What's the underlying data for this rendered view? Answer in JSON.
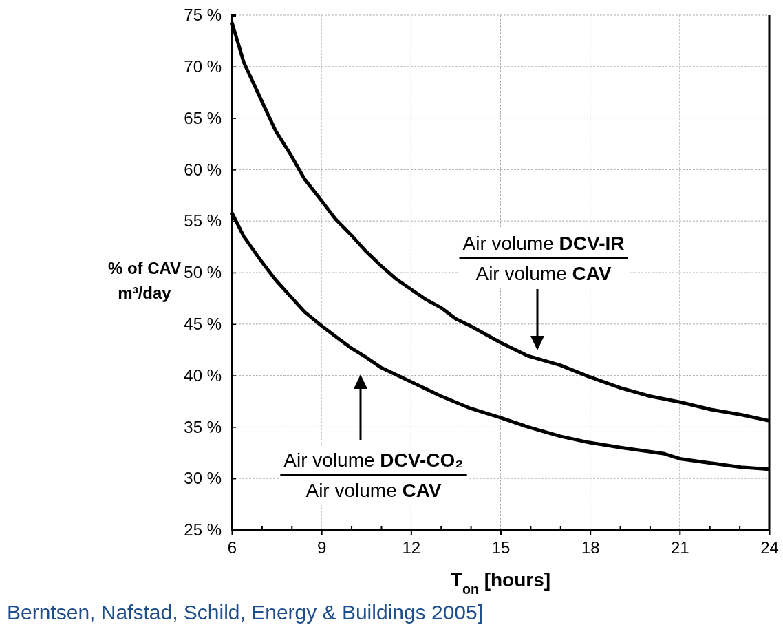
{
  "chart_data": {
    "type": "line",
    "xlabel": "T$_{on}$ [hours]",
    "ylabel": "% of CAV\nm³/day",
    "xlim": [
      6,
      24
    ],
    "xticks": [
      6,
      {
        "value": 7,
        "label": null
      },
      {
        "value": 8,
        "label": null
      },
      9,
      {
        "value": 10,
        "label": null
      },
      {
        "value": 11,
        "label": null
      },
      12,
      {
        "value": 13,
        "label": null
      },
      {
        "value": 14,
        "label": null
      },
      15,
      {
        "value": 16,
        "label": null
      },
      {
        "value": 17,
        "label": null
      },
      18,
      {
        "value": 19,
        "label": null
      },
      {
        "value": 20,
        "label": null
      },
      21,
      {
        "value": 22,
        "label": null
      },
      {
        "value": 23,
        "label": null
      },
      24
    ],
    "ylim": [
      25,
      75
    ],
    "yticks": [
      {
        "value": 25,
        "label": "25 %"
      },
      {
        "value": 30,
        "label": "30 %"
      },
      {
        "value": 35,
        "label": "35 %"
      },
      {
        "value": 40,
        "label": "40 %"
      },
      {
        "value": 45,
        "label": "45 %"
      },
      {
        "value": 50,
        "label": "50 %"
      },
      {
        "value": 55,
        "label": "55 %"
      },
      {
        "value": 60,
        "label": "60 %"
      },
      {
        "value": 65,
        "label": "65 %"
      },
      {
        "value": 70,
        "label": "70 %"
      },
      {
        "value": 75,
        "label": "75 %"
      }
    ],
    "grid": true,
    "marker": "none",
    "line_style": "solid",
    "series": [
      {
        "color": "#000000",
        "x": [
          6,
          6.4,
          6.96,
          7.46,
          7.96,
          8.43,
          8.97,
          9.47,
          9.98,
          10.48,
          10.98,
          11.49,
          11.99,
          12.49,
          13,
          13.5,
          14,
          15,
          15.92,
          17,
          17.95,
          19.02,
          19.99,
          21.04,
          22.04,
          23.05,
          24
        ],
        "values": [
          74.3,
          70.4,
          66.9,
          63.8,
          61.5,
          59.1,
          57.1,
          55.2,
          53.7,
          52.1,
          50.7,
          49.4,
          48.4,
          47.4,
          46.6,
          45.5,
          44.8,
          43.2,
          41.9,
          41.0,
          39.9,
          38.8,
          38.0,
          37.4,
          36.7,
          36.2,
          35.6
        ]
      },
      {
        "color": "#000000",
        "x": [
          6,
          6.4,
          6.96,
          7.46,
          7.96,
          8.43,
          8.97,
          9.47,
          9.98,
          10.48,
          10.98,
          11.99,
          13,
          14,
          15,
          15.92,
          17,
          17.95,
          19.02,
          20.49,
          21.04,
          22.04,
          23.05,
          24
        ],
        "values": [
          55.8,
          53.5,
          51.2,
          49.3,
          47.7,
          46.2,
          44.9,
          43.8,
          42.7,
          41.8,
          40.8,
          39.4,
          38.0,
          36.8,
          35.9,
          35.0,
          34.1,
          33.5,
          33.0,
          32.4,
          31.9,
          31.5,
          31.1,
          30.9
        ]
      }
    ],
    "annotations": [
      "Air volume DCV-IR\nAir volume CAV",
      "Air volume DCV-CO₂\nAir volume CAV",
      "Berntsen, Nafstad, Schild, Energy & Buildings 2005]"
    ]
  }
}
